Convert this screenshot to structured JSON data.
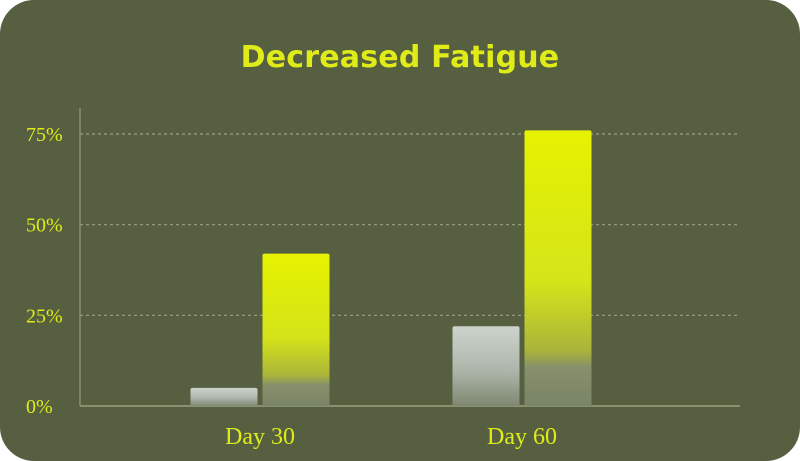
{
  "colors": {
    "background": "#566040",
    "accent": "#dfec18",
    "baseline_bar": "#c8d0c8",
    "grid": "#9aa08a",
    "axis": "#8a9070"
  },
  "chart_data": {
    "type": "bar",
    "title": "Decreased Fatigue",
    "xlabel": "",
    "ylabel": "",
    "categories": [
      "Day 30",
      "Day 60"
    ],
    "series": [
      {
        "values": [
          5,
          22
        ]
      },
      {
        "values": [
          42,
          76
        ]
      }
    ],
    "ylim": [
      0,
      75
    ],
    "yticks": [
      0,
      25,
      50,
      75
    ],
    "ytick_labels": [
      "0%",
      "25%",
      "50%",
      "75%"
    ],
    "grid": true,
    "legend": "none"
  }
}
